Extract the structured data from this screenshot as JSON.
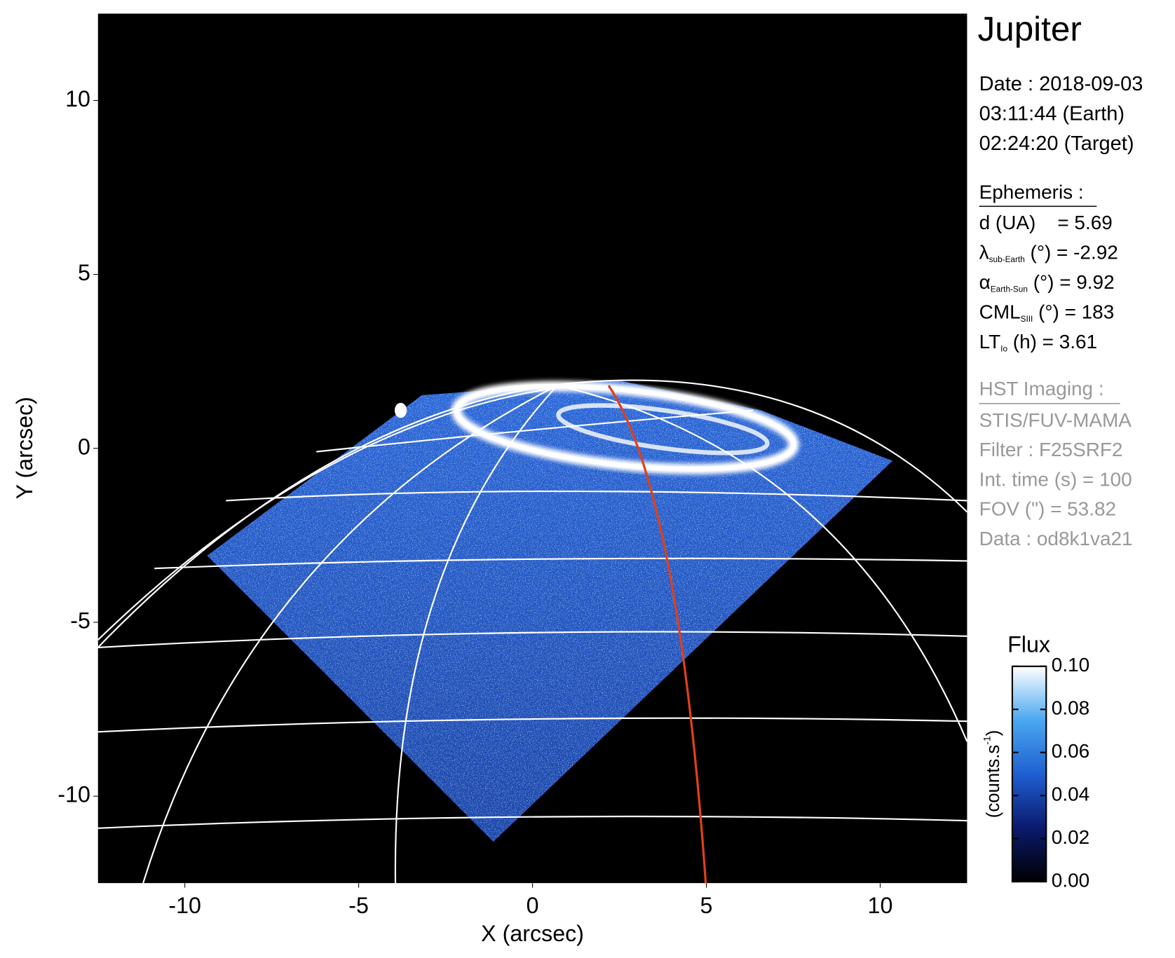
{
  "chart_data": {
    "type": "image",
    "title": "Jupiter",
    "xlabel": "X (arcsec)",
    "ylabel": "Y (arcsec)",
    "xlim": [
      -12.5,
      12.5
    ],
    "ylim": [
      -12.5,
      12.5
    ],
    "xticks": [
      -10,
      -5,
      0,
      5,
      10
    ],
    "yticks": [
      -10,
      -5,
      0,
      5,
      10
    ],
    "colorbar": {
      "title": "Flux",
      "label": "(counts.s",
      "label_sup": "-1",
      "label_end": ")",
      "lim": [
        0,
        0.1
      ],
      "ticks": [
        {
          "value": 0,
          "label": "0.00"
        },
        {
          "value": 0.02,
          "label": "0.02"
        },
        {
          "value": 0.04,
          "label": "0.04"
        },
        {
          "value": 0.06,
          "label": "0.06"
        },
        {
          "value": 0.08,
          "label": "0.08"
        },
        {
          "value": 0.1,
          "label": "0.10"
        }
      ],
      "colormap": [
        "#000000",
        "#0a1a6e",
        "#1f5fd1",
        "#4aa8f0",
        "#ffffff"
      ]
    }
  },
  "panel": {
    "date": [
      "Date : 2018-09-03",
      "03:11:44 (Earth)",
      "02:24:20 (Target)"
    ],
    "ephemeris_title": "Ephemeris :",
    "ephemeris": [
      {
        "text": "d (UA)    = 5.69"
      },
      {
        "text": "λ",
        "sub": "sub-Earth",
        "rest": " (°) = -2.92"
      },
      {
        "text": "α",
        "sub": "Earth-Sun",
        "rest": " (°) = 9.92"
      },
      {
        "text": "CML",
        "sub": "SIII",
        "rest": " (°) = 183"
      },
      {
        "text": "LT",
        "sub": "Io",
        "rest": " (h) = 3.61"
      }
    ],
    "imaging_title": "HST Imaging :",
    "imaging": [
      "STIS/FUV-MAMA",
      "Filter : F25SRF2",
      "Int. time (s) = 100",
      "FOV (\") = 53.82",
      "Data : od8k1va21"
    ]
  }
}
